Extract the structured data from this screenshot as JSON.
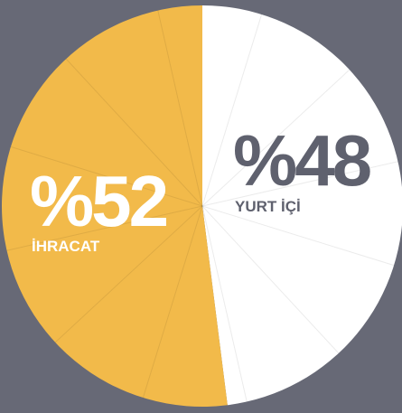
{
  "chart_data": {
    "type": "pie",
    "categories": [
      "YURT İÇİ",
      "İHRACAT"
    ],
    "values": [
      48,
      52
    ],
    "value_labels": [
      "%48",
      "%52"
    ],
    "colors": [
      "#ffffff",
      "#f2ba4a"
    ],
    "label_colors": [
      "#5f616e",
      "#ffffff"
    ]
  }
}
